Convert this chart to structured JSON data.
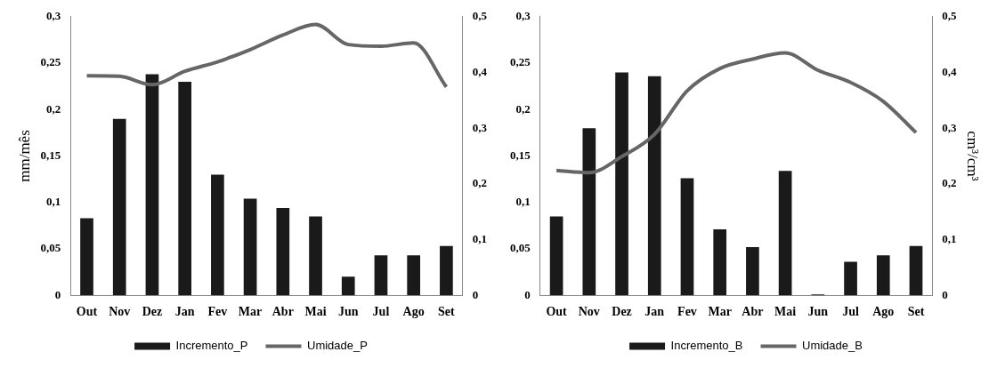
{
  "chart_data": [
    {
      "type": "bar",
      "categories": [
        "Out",
        "Nov",
        "Dez",
        "Jan",
        "Fev",
        "Mar",
        "Abr",
        "Mai",
        "Jun",
        "Jul",
        "Ago",
        "Set"
      ],
      "ylabel": "mm/mês",
      "ylim": [
        0,
        0.3
      ],
      "yticks": [
        {
          "value": 0,
          "label": "0"
        },
        {
          "value": 0.05,
          "label": "0,05"
        },
        {
          "value": 0.1,
          "label": "0,1"
        },
        {
          "value": 0.15,
          "label": "0,15"
        },
        {
          "value": 0.2,
          "label": "0,2"
        },
        {
          "value": 0.25,
          "label": "0,25"
        },
        {
          "value": 0.3,
          "label": "0,3"
        }
      ],
      "y2lim": [
        0,
        0.5
      ],
      "y2ticks": [
        {
          "value": 0,
          "label": "0"
        },
        {
          "value": 0.1,
          "label": "0,1"
        },
        {
          "value": 0.2,
          "label": "0,2"
        },
        {
          "value": 0.3,
          "label": "0,3"
        },
        {
          "value": 0.4,
          "label": "0,4"
        },
        {
          "value": 0.5,
          "label": "0,5"
        }
      ],
      "grid": false,
      "legend": "bottom",
      "series": [
        {
          "name": "Incremento_P",
          "color": "#1a1a1a",
          "values": [
            0.083,
            0.19,
            0.238,
            0.23,
            0.13,
            0.104,
            0.094,
            0.085,
            0.02,
            0.043,
            0.043,
            0.053
          ]
        },
        {
          "name": "Umidade_P",
          "type": "line",
          "axis": "y2",
          "color": "#666666",
          "values": [
            0.394,
            0.393,
            0.378,
            0.402,
            0.419,
            0.441,
            0.467,
            0.486,
            0.45,
            0.447,
            0.453,
            0.374
          ]
        }
      ]
    },
    {
      "type": "bar",
      "categories": [
        "Out",
        "Nov",
        "Dez",
        "Jan",
        "Fev",
        "Mar",
        "Abr",
        "Mai",
        "Jun",
        "Jul",
        "Ago",
        "Set"
      ],
      "y2label": "cm³/cm³",
      "ylim": [
        0,
        0.3
      ],
      "yticks": [
        {
          "value": 0,
          "label": "0"
        },
        {
          "value": 0.05,
          "label": "0,05"
        },
        {
          "value": 0.1,
          "label": "0,1"
        },
        {
          "value": 0.15,
          "label": "0,15"
        },
        {
          "value": 0.2,
          "label": "0,2"
        },
        {
          "value": 0.25,
          "label": "0,25"
        },
        {
          "value": 0.3,
          "label": "0,3"
        }
      ],
      "y2lim": [
        0,
        0.5
      ],
      "y2ticks": [
        {
          "value": 0,
          "label": "0"
        },
        {
          "value": 0.1,
          "label": "0,1"
        },
        {
          "value": 0.2,
          "label": "0,2"
        },
        {
          "value": 0.3,
          "label": "0,3"
        },
        {
          "value": 0.4,
          "label": "0,4"
        },
        {
          "value": 0.5,
          "label": "0,5"
        }
      ],
      "grid": false,
      "legend": "bottom",
      "series": [
        {
          "name": "Incremento_B",
          "color": "#1a1a1a",
          "values": [
            0.085,
            0.18,
            0.24,
            0.236,
            0.126,
            0.071,
            0.052,
            0.134,
            0.001,
            0.036,
            0.043,
            0.053
          ]
        },
        {
          "name": "Umidade_B",
          "type": "line",
          "axis": "y2",
          "color": "#666666",
          "values": [
            0.224,
            0.22,
            0.249,
            0.289,
            0.367,
            0.407,
            0.424,
            0.435,
            0.404,
            0.382,
            0.348,
            0.292
          ]
        }
      ]
    }
  ]
}
